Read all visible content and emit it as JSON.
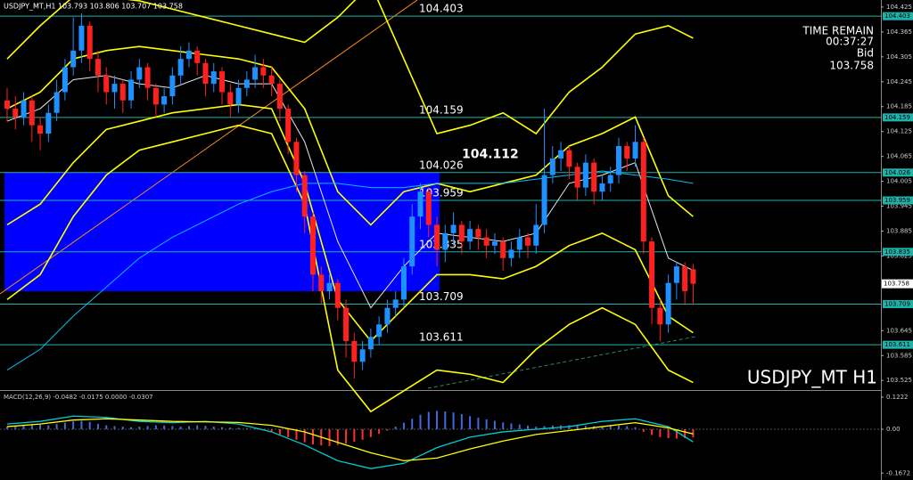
{
  "chart_data": {
    "type": "candlestick",
    "title": "USDJPY_MT,H1 103.793 103.806 103.707 103.758",
    "watermark": "USDJPY_MT H1",
    "timer_label": "TIME REMAIN",
    "timer": "00:37:27",
    "bid_label": "Bid",
    "bid": 103.758,
    "annotation": 104.112,
    "ylim": [
      103.504,
      104.442
    ],
    "yticks": [
      104.425,
      104.365,
      104.305,
      104.245,
      104.185,
      104.125,
      104.065,
      104.005,
      103.945,
      103.885,
      103.825,
      103.645,
      103.585,
      103.525
    ],
    "levels": [
      104.403,
      104.159,
      104.026,
      103.959,
      103.835,
      103.709,
      103.611
    ],
    "zone": [
      103.74,
      104.026
    ],
    "up_color": "#1e90ff",
    "down_color": "#ff2020",
    "open": [
      104.2,
      104.18,
      104.16,
      104.2,
      104.14,
      104.12,
      104.17,
      104.22,
      104.28,
      104.32,
      104.38,
      104.3,
      104.26,
      104.22,
      104.24,
      104.2,
      104.25,
      104.28,
      104.23,
      104.19,
      104.21,
      104.26,
      104.3,
      104.32,
      104.29,
      104.24,
      104.27,
      104.22,
      104.19,
      104.23,
      104.25,
      104.28,
      104.26,
      104.24,
      104.18,
      104.1,
      104.02,
      103.92,
      103.78,
      103.74,
      103.76,
      103.7,
      103.62,
      103.57,
      103.6,
      103.63,
      103.66,
      103.7,
      103.72,
      103.8,
      103.92,
      103.98,
      103.9,
      103.84,
      103.88,
      103.9,
      103.86,
      103.89,
      103.87,
      103.85,
      103.86,
      103.82,
      103.84,
      103.87,
      103.85,
      103.9,
      104.02,
      104.06,
      104.08,
      104.04,
      103.99,
      104.05,
      103.98,
      104.0,
      104.02,
      104.09,
      104.06,
      104.1,
      103.86,
      103.7,
      103.66,
      103.76,
      103.8,
      103.793
    ],
    "high": [
      104.23,
      104.21,
      104.22,
      104.21,
      104.16,
      104.19,
      104.25,
      104.3,
      104.4,
      104.41,
      104.39,
      104.32,
      104.28,
      104.26,
      104.25,
      104.27,
      104.3,
      104.29,
      104.24,
      104.23,
      104.28,
      104.33,
      104.34,
      104.33,
      104.3,
      104.29,
      104.28,
      104.24,
      104.25,
      104.27,
      104.31,
      104.3,
      104.28,
      104.25,
      104.19,
      104.11,
      104.03,
      103.93,
      103.8,
      103.78,
      103.77,
      103.72,
      103.64,
      103.62,
      103.65,
      103.68,
      103.72,
      103.74,
      103.82,
      103.95,
      104.0,
      103.99,
      103.92,
      103.9,
      103.93,
      103.91,
      103.91,
      103.9,
      103.89,
      103.88,
      103.87,
      103.86,
      103.89,
      103.88,
      103.95,
      104.18,
      104.09,
      104.1,
      104.09,
      104.05,
      104.07,
      104.06,
      104.02,
      104.04,
      104.11,
      104.1,
      104.14,
      104.11,
      103.87,
      103.72,
      103.78,
      103.81,
      103.81,
      103.806
    ],
    "low": [
      104.15,
      104.13,
      104.14,
      104.1,
      104.08,
      104.1,
      104.15,
      104.2,
      104.26,
      104.29,
      104.27,
      104.22,
      104.19,
      104.18,
      104.17,
      104.18,
      104.23,
      104.2,
      104.16,
      104.17,
      104.19,
      104.24,
      104.28,
      104.26,
      104.21,
      104.22,
      104.19,
      104.16,
      104.17,
      104.21,
      104.23,
      104.23,
      104.21,
      104.15,
      104.07,
      103.98,
      103.88,
      103.74,
      103.71,
      103.72,
      103.67,
      103.58,
      103.53,
      103.55,
      103.58,
      103.61,
      103.64,
      103.68,
      103.7,
      103.78,
      103.89,
      103.87,
      103.8,
      103.81,
      103.85,
      103.83,
      103.84,
      103.84,
      103.82,
      103.83,
      103.79,
      103.8,
      103.82,
      103.82,
      103.83,
      103.88,
      104.0,
      104.03,
      104.01,
      103.96,
      103.97,
      103.95,
      103.96,
      103.98,
      104.0,
      104.03,
      104.04,
      103.83,
      103.66,
      103.62,
      103.64,
      103.72,
      103.71,
      103.707
    ],
    "close": [
      104.18,
      104.16,
      104.2,
      104.14,
      104.12,
      104.17,
      104.22,
      104.28,
      104.32,
      104.38,
      104.3,
      104.26,
      104.22,
      104.24,
      104.2,
      104.25,
      104.28,
      104.23,
      104.19,
      104.21,
      104.26,
      104.3,
      104.32,
      104.29,
      104.24,
      104.27,
      104.22,
      104.19,
      104.23,
      104.25,
      104.28,
      104.26,
      104.24,
      104.18,
      104.1,
      104.02,
      103.92,
      103.78,
      103.74,
      103.76,
      103.7,
      103.62,
      103.57,
      103.6,
      103.63,
      103.66,
      103.7,
      103.72,
      103.8,
      103.92,
      103.98,
      103.9,
      103.84,
      103.88,
      103.9,
      103.86,
      103.89,
      103.87,
      103.85,
      103.86,
      103.82,
      103.84,
      103.87,
      103.85,
      103.9,
      104.02,
      104.06,
      104.08,
      104.04,
      103.99,
      104.05,
      103.98,
      104.0,
      104.02,
      104.09,
      104.06,
      104.1,
      103.86,
      103.7,
      103.66,
      103.76,
      103.8,
      103.74,
      103.758
    ],
    "indicator_x": [
      0,
      4,
      8,
      12,
      16,
      20,
      24,
      28,
      32,
      36,
      40,
      44,
      48,
      52,
      56,
      60,
      64,
      68,
      72,
      76,
      80,
      83
    ],
    "indicators": [
      {
        "color": "#ffff00",
        "values": [
          104.3,
          104.38,
          104.45,
          104.45,
          104.44,
          104.42,
          104.4,
          104.38,
          104.36,
          104.34,
          104.4,
          104.48,
          104.3,
          104.12,
          104.14,
          104.17,
          104.12,
          104.22,
          104.28,
          104.36,
          104.38,
          104.35
        ]
      },
      {
        "color": "#ffff00",
        "values": [
          103.72,
          103.78,
          103.92,
          104.02,
          104.08,
          104.1,
          104.12,
          104.14,
          104.12,
          103.95,
          103.55,
          103.45,
          103.5,
          103.55,
          103.54,
          103.52,
          103.6,
          103.66,
          103.7,
          103.66,
          103.55,
          103.52
        ]
      },
      {
        "color": "#ffff00",
        "values": [
          104.18,
          104.22,
          104.3,
          104.32,
          104.33,
          104.32,
          104.31,
          104.3,
          104.28,
          104.18,
          103.98,
          103.9,
          103.98,
          104.0,
          103.98,
          104.0,
          104.02,
          104.09,
          104.12,
          104.16,
          103.97,
          103.92
        ]
      },
      {
        "color": "#ffff00",
        "values": [
          103.9,
          103.95,
          104.05,
          104.13,
          104.15,
          104.17,
          104.18,
          104.19,
          104.18,
          104.0,
          103.72,
          103.62,
          103.7,
          103.78,
          103.78,
          103.77,
          103.8,
          103.85,
          103.88,
          103.84,
          103.68,
          103.64
        ]
      },
      {
        "color": "#e8e8e8",
        "values": [
          104.15,
          104.18,
          104.25,
          104.26,
          104.24,
          104.23,
          104.26,
          104.24,
          104.24,
          104.1,
          103.86,
          103.7,
          103.8,
          103.88,
          103.87,
          103.86,
          103.88,
          104.0,
          104.02,
          104.05,
          103.82,
          103.79
        ]
      },
      {
        "color": "#00bfff",
        "values": [
          103.55,
          103.6,
          103.68,
          103.75,
          103.82,
          103.87,
          103.91,
          103.95,
          103.98,
          104.0,
          104.0,
          103.99,
          103.99,
          104.0,
          104.0,
          104.0,
          104.01,
          104.02,
          104.03,
          104.02,
          104.01,
          104.0
        ]
      }
    ],
    "macd": {
      "title": "MACD(12,26,9) -0.0482 -0.0175 0.0000 -0.0307",
      "ylim": [
        -0.1935,
        0.1426
      ],
      "yticks": [
        0.1222,
        {
          "value": 0,
          "label": "0.00"
        },
        -0.1672
      ],
      "up_color": "#4169e1",
      "down_color": "#ff3030",
      "histogram": [
        0.01,
        0.012,
        0.015,
        0.02,
        0.018,
        0.015,
        0.02,
        0.025,
        0.03,
        0.032,
        0.028,
        0.02,
        0.015,
        0.012,
        0.01,
        0.008,
        0.01,
        0.012,
        0.015,
        0.014,
        0.012,
        0.01,
        0.012,
        0.015,
        0.013,
        0.01,
        0.008,
        0.006,
        0.005,
        0.004,
        0.002,
        -0.005,
        -0.012,
        -0.02,
        -0.03,
        -0.04,
        -0.05,
        -0.058,
        -0.062,
        -0.064,
        -0.06,
        -0.055,
        -0.048,
        -0.04,
        -0.03,
        -0.018,
        -0.005,
        0.01,
        0.025,
        0.04,
        0.055,
        0.066,
        0.07,
        0.068,
        0.064,
        0.058,
        0.05,
        0.044,
        0.038,
        0.032,
        0.026,
        0.022,
        0.018,
        0.014,
        0.01,
        0.012,
        0.014,
        0.015,
        0.016,
        0.014,
        0.013,
        0.012,
        0.012,
        0.013,
        0.014,
        0.012,
        0.008,
        -0.01,
        -0.022,
        -0.03,
        -0.034,
        -0.036,
        -0.034,
        -0.031
      ],
      "lines": [
        {
          "color": "#00ced1",
          "values": [
            0.02,
            0.03,
            0.05,
            0.045,
            0.03,
            0.025,
            0.03,
            0.02,
            -0.01,
            -0.06,
            -0.12,
            -0.15,
            -0.13,
            -0.07,
            -0.03,
            -0.01,
            0.0,
            0.01,
            0.03,
            0.04,
            0.01,
            -0.048
          ]
        },
        {
          "color": "#ffff00",
          "values": [
            0.01,
            0.02,
            0.035,
            0.04,
            0.035,
            0.03,
            0.028,
            0.026,
            0.015,
            -0.01,
            -0.05,
            -0.09,
            -0.12,
            -0.11,
            -0.075,
            -0.045,
            -0.02,
            -0.005,
            0.01,
            0.025,
            0.005,
            -0.018
          ]
        }
      ]
    }
  }
}
